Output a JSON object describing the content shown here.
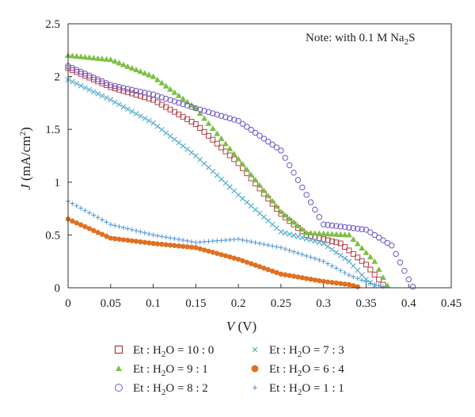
{
  "chart_data": {
    "type": "scatter",
    "note": "Note: with 0.1 M Na",
    "note_sub": "2",
    "note_tail": "S",
    "xlabel_var": "V",
    "xlabel_unit": " (V)",
    "ylabel_var": "J",
    "ylabel_unit": " (mA/cm",
    "ylabel_sup": "2",
    "ylabel_end": ")",
    "xlim": [
      0,
      0.45
    ],
    "ylim": [
      0,
      2.5
    ],
    "x_ticks": [
      "0",
      "0.05",
      "0.1",
      "0.15",
      "0.2",
      "0.25",
      "0.3",
      "0.35",
      "0.4",
      "0.45"
    ],
    "y_ticks": [
      "0",
      "0.5",
      "1",
      "1.5",
      "2",
      "2.5"
    ],
    "grid": false,
    "legend_position": "below",
    "series": [
      {
        "name": "Et : H2O = 10 : 0",
        "label_parts": [
          "Et",
          " : H",
          "2",
          "O = 10 : 0"
        ],
        "marker": "square-open",
        "color": "#b5414a",
        "points": [
          [
            0,
            2.08
          ],
          [
            0.05,
            1.9
          ],
          [
            0.1,
            1.78
          ],
          [
            0.15,
            1.55
          ],
          [
            0.2,
            1.18
          ],
          [
            0.25,
            0.7
          ],
          [
            0.28,
            0.5
          ],
          [
            0.32,
            0.42
          ],
          [
            0.35,
            0.22
          ],
          [
            0.37,
            0.03
          ]
        ]
      },
      {
        "name": "Et : H2O = 9 : 1",
        "label_parts": [
          "Et",
          " : H",
          "2",
          "O = 9 : 1"
        ],
        "marker": "triangle-filled",
        "color": "#7ac143",
        "points": [
          [
            0,
            2.2
          ],
          [
            0.05,
            2.16
          ],
          [
            0.1,
            2.0
          ],
          [
            0.15,
            1.7
          ],
          [
            0.2,
            1.22
          ],
          [
            0.25,
            0.72
          ],
          [
            0.28,
            0.52
          ],
          [
            0.33,
            0.5
          ],
          [
            0.36,
            0.25
          ],
          [
            0.375,
            0.02
          ]
        ]
      },
      {
        "name": "Et : H2O = 8 : 2",
        "label_parts": [
          "Et",
          " : H",
          "2",
          "O = 8 : 2"
        ],
        "marker": "circle-open",
        "color": "#6a55c8",
        "points": [
          [
            0,
            2.1
          ],
          [
            0.05,
            1.92
          ],
          [
            0.1,
            1.83
          ],
          [
            0.15,
            1.7
          ],
          [
            0.2,
            1.58
          ],
          [
            0.25,
            1.3
          ],
          [
            0.3,
            0.6
          ],
          [
            0.35,
            0.55
          ],
          [
            0.38,
            0.4
          ],
          [
            0.4,
            0.08
          ],
          [
            0.405,
            0.01
          ]
        ]
      },
      {
        "name": "Et : H2O = 7 : 3",
        "label_parts": [
          "Et",
          " : H",
          "2",
          "O = 7 : 3"
        ],
        "marker": "cross",
        "color": "#4aa8c8",
        "points": [
          [
            0,
            1.97
          ],
          [
            0.05,
            1.78
          ],
          [
            0.1,
            1.56
          ],
          [
            0.15,
            1.25
          ],
          [
            0.2,
            0.88
          ],
          [
            0.25,
            0.53
          ],
          [
            0.3,
            0.42
          ],
          [
            0.33,
            0.25
          ],
          [
            0.35,
            0.08
          ],
          [
            0.36,
            0.02
          ]
        ]
      },
      {
        "name": "Et : H2O = 6 : 4",
        "label_parts": [
          "Et",
          " : H",
          "2",
          "O = 6 : 4"
        ],
        "marker": "circle-filled",
        "color": "#e07020",
        "points": [
          [
            0,
            0.65
          ],
          [
            0.05,
            0.47
          ],
          [
            0.1,
            0.42
          ],
          [
            0.15,
            0.38
          ],
          [
            0.2,
            0.27
          ],
          [
            0.25,
            0.13
          ],
          [
            0.3,
            0.06
          ],
          [
            0.33,
            0.03
          ],
          [
            0.34,
            0.01
          ]
        ]
      },
      {
        "name": "Et : H2O = 1 : 1",
        "label_parts": [
          "Et",
          " : H",
          "2",
          "O = 1 : 1"
        ],
        "marker": "plus",
        "color": "#5a9ad4",
        "points": [
          [
            0,
            0.82
          ],
          [
            0.05,
            0.6
          ],
          [
            0.1,
            0.5
          ],
          [
            0.15,
            0.43
          ],
          [
            0.2,
            0.46
          ],
          [
            0.25,
            0.38
          ],
          [
            0.3,
            0.25
          ],
          [
            0.33,
            0.12
          ],
          [
            0.355,
            0.04
          ],
          [
            0.37,
            0.01
          ]
        ]
      }
    ]
  }
}
